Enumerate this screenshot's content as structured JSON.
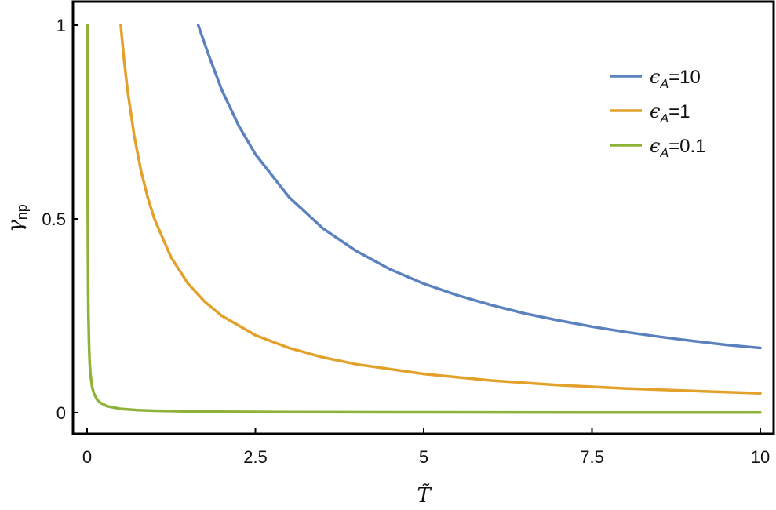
{
  "chart_data": {
    "type": "line",
    "x_range": [
      0,
      10
    ],
    "ylim": [
      0,
      1
    ],
    "xticks": [
      {
        "value": 0,
        "label": "0"
      },
      {
        "value": 2.5,
        "label": "2.5"
      },
      {
        "value": 5,
        "label": "5"
      },
      {
        "value": 7.5,
        "label": "7.5"
      },
      {
        "value": 10,
        "label": "10"
      }
    ],
    "yticks": [
      {
        "value": 0,
        "label": "0"
      },
      {
        "value": 0.5,
        "label": "0.5"
      },
      {
        "value": 1,
        "label": "1"
      }
    ],
    "xlabel": "T̃",
    "ylabel_main": "γ",
    "ylabel_sub": "np",
    "legend_position": "top-right",
    "grid": false,
    "series": [
      {
        "name_prefix": "ϵ",
        "name_sub": "A",
        "name_suffix": "=10",
        "color": "#5b82be",
        "points": [
          [
            1.65,
            1.0
          ],
          [
            1.8,
            0.926
          ],
          [
            2.0,
            0.833
          ],
          [
            2.25,
            0.741
          ],
          [
            2.5,
            0.667
          ],
          [
            3.0,
            0.556
          ],
          [
            3.5,
            0.476
          ],
          [
            4.0,
            0.417
          ],
          [
            4.5,
            0.37
          ],
          [
            5.0,
            0.333
          ],
          [
            5.5,
            0.303
          ],
          [
            6.0,
            0.278
          ],
          [
            6.5,
            0.256
          ],
          [
            7.0,
            0.238
          ],
          [
            7.5,
            0.222
          ],
          [
            8.0,
            0.208
          ],
          [
            8.5,
            0.196
          ],
          [
            9.0,
            0.185
          ],
          [
            9.5,
            0.175
          ],
          [
            10.0,
            0.167
          ]
        ]
      },
      {
        "name_prefix": "ϵ",
        "name_sub": "A",
        "name_suffix": "=1",
        "color": "#e3a02a",
        "points": [
          [
            0.5,
            1.0
          ],
          [
            0.55,
            0.909
          ],
          [
            0.6,
            0.833
          ],
          [
            0.7,
            0.714
          ],
          [
            0.8,
            0.625
          ],
          [
            0.9,
            0.556
          ],
          [
            1.0,
            0.5
          ],
          [
            1.25,
            0.4
          ],
          [
            1.5,
            0.333
          ],
          [
            1.75,
            0.286
          ],
          [
            2.0,
            0.25
          ],
          [
            2.5,
            0.2
          ],
          [
            3.0,
            0.167
          ],
          [
            3.5,
            0.143
          ],
          [
            4.0,
            0.125
          ],
          [
            5.0,
            0.1
          ],
          [
            6.0,
            0.083
          ],
          [
            7.0,
            0.071
          ],
          [
            8.0,
            0.0625
          ],
          [
            9.0,
            0.056
          ],
          [
            10.0,
            0.05
          ]
        ]
      },
      {
        "name_prefix": "ϵ",
        "name_sub": "A",
        "name_suffix": "=0.1",
        "color": "#8fb339",
        "points": [
          [
            0.005,
            1.0
          ],
          [
            0.0075,
            0.667
          ],
          [
            0.01,
            0.5
          ],
          [
            0.015,
            0.333
          ],
          [
            0.02,
            0.25
          ],
          [
            0.03,
            0.167
          ],
          [
            0.04,
            0.125
          ],
          [
            0.05,
            0.1
          ],
          [
            0.075,
            0.0667
          ],
          [
            0.1,
            0.05
          ],
          [
            0.15,
            0.0333
          ],
          [
            0.2,
            0.025
          ],
          [
            0.3,
            0.0167
          ],
          [
            0.5,
            0.01
          ],
          [
            0.75,
            0.0067
          ],
          [
            1.0,
            0.005
          ],
          [
            1.5,
            0.0033
          ],
          [
            2.0,
            0.0025
          ],
          [
            3.0,
            0.0017
          ],
          [
            5.0,
            0.001
          ],
          [
            7.5,
            0.0007
          ],
          [
            10.0,
            0.0005
          ]
        ]
      }
    ]
  }
}
